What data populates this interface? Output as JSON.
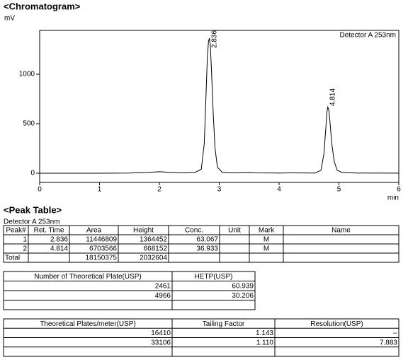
{
  "chart_data": {
    "type": "line",
    "title": "<Chromatogram>",
    "y_label": "mV",
    "x_label": "min",
    "detector": "Detector A 253nm",
    "peak_labels": [
      "2.836",
      "4.814"
    ],
    "x": [
      0,
      0.5,
      1,
      1.5,
      1.8,
      2.0,
      2.2,
      2.4,
      2.6,
      2.7,
      2.75,
      2.78,
      2.8,
      2.82,
      2.836,
      2.85,
      2.87,
      2.9,
      2.93,
      2.97,
      3.05,
      3.2,
      3.5,
      3.6,
      4.0,
      4.2,
      4.6,
      4.7,
      4.75,
      4.78,
      4.8,
      4.814,
      4.83,
      4.85,
      4.88,
      4.92,
      4.97,
      5.05,
      5.3,
      6
    ],
    "series": [
      {
        "color": "#000000",
        "values": [
          0,
          0,
          0,
          2,
          8,
          15,
          8,
          3,
          10,
          40,
          300,
          800,
          1150,
          1330,
          1364,
          1300,
          1050,
          600,
          250,
          60,
          10,
          3,
          8,
          3,
          2,
          3,
          2,
          30,
          200,
          450,
          620,
          668,
          640,
          520,
          300,
          120,
          30,
          8,
          2,
          1
        ]
      }
    ],
    "xlim": [
      0,
      6
    ],
    "xticks": [
      0,
      1,
      2,
      3,
      4,
      5,
      6
    ],
    "ylim": [
      -93,
      1443
    ],
    "yticks": [
      0,
      500,
      1000
    ]
  },
  "peak_table": {
    "title": "<Peak Table>",
    "detector": "Detector A 253nm",
    "columns": [
      "Peak#",
      "Ret. Time",
      "Area",
      "Height",
      "Conc.",
      "Unit",
      "Mark",
      "Name"
    ],
    "rows": [
      [
        "1",
        "2.836",
        "11446809",
        "1364452",
        "63.067",
        null,
        "M",
        null
      ],
      [
        "2",
        "4.814",
        "6703566",
        "668152",
        "36.933",
        null,
        "M",
        null
      ],
      [
        "Total",
        null,
        "18150375",
        "2032604",
        null,
        null,
        null,
        null
      ]
    ]
  },
  "plate_table": {
    "columns": [
      "Number of Theoretical Plate(USP)",
      "HETP(USP)"
    ],
    "rows": [
      [
        "2461",
        "60.939"
      ],
      [
        "4966",
        "30.206"
      ]
    ]
  },
  "factor_table": {
    "columns": [
      "Theoretical Plates/meter(USP)",
      "Tailing Factor",
      "Resolution(USP)"
    ],
    "rows": [
      [
        "16410",
        "1.143",
        "--"
      ],
      [
        "33106",
        "1.110",
        "7.883"
      ]
    ]
  }
}
